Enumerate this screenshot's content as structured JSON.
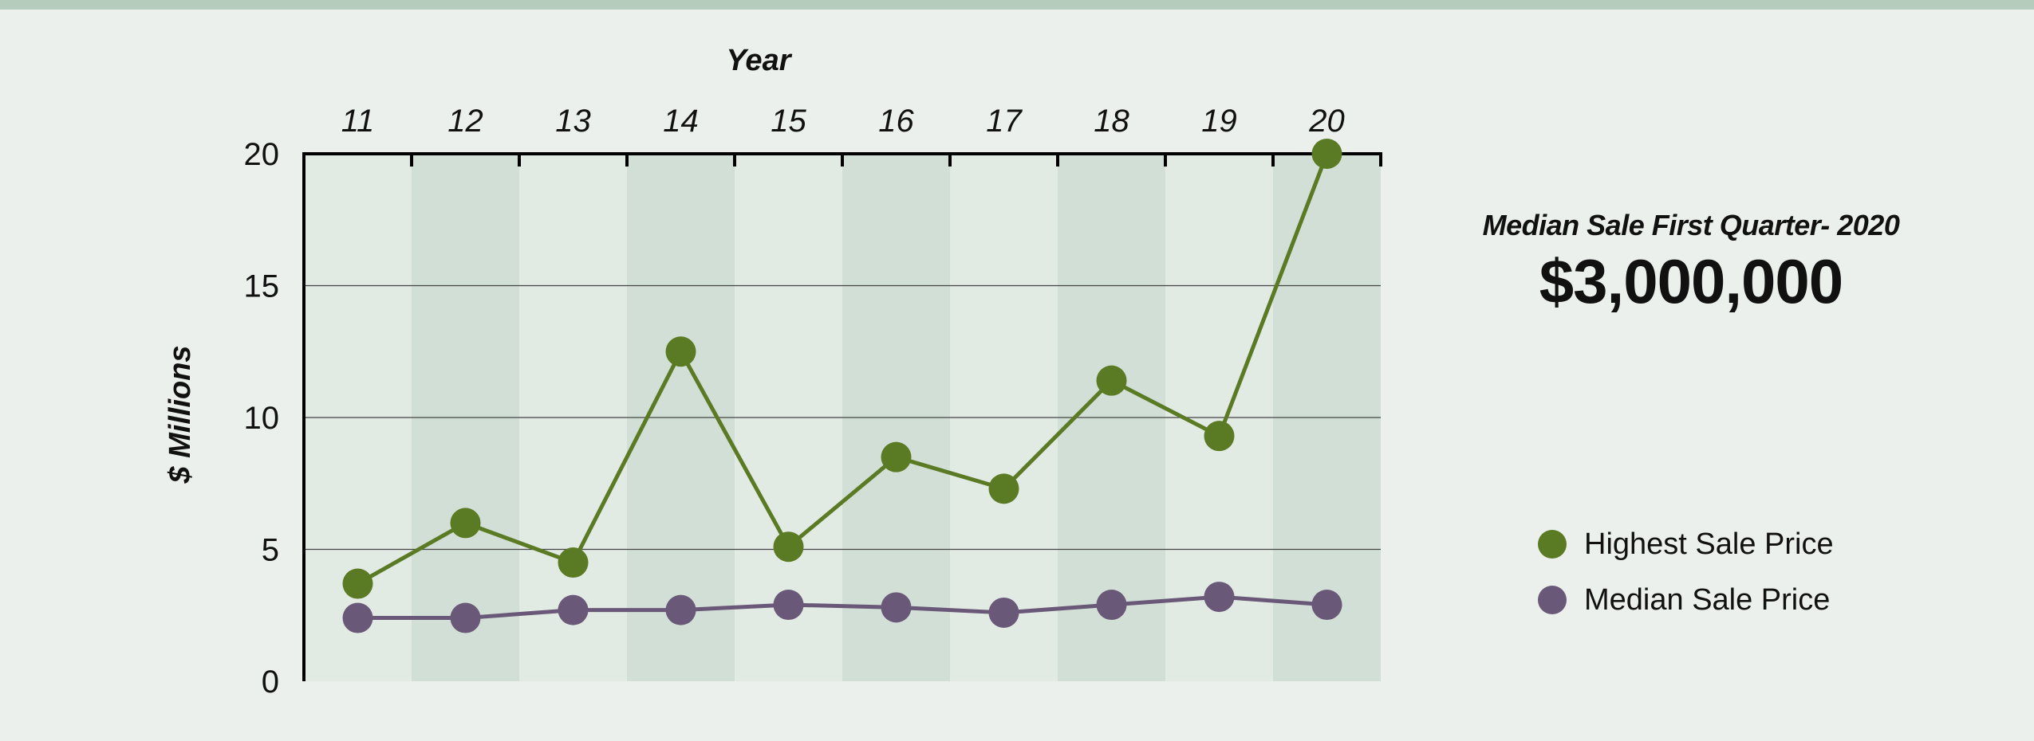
{
  "chart_data": {
    "type": "line",
    "xlabel": "Year",
    "ylabel": "$ Millions",
    "categories": [
      "11",
      "12",
      "13",
      "14",
      "15",
      "16",
      "17",
      "18",
      "19",
      "20"
    ],
    "ylim": [
      0,
      20
    ],
    "yticks": [
      "0",
      "5",
      "10",
      "15",
      "20"
    ],
    "grid": true,
    "legend_position": "right",
    "series": [
      {
        "name": "Highest Sale Price",
        "color": "#5a7a23",
        "values": [
          3.7,
          6.0,
          4.5,
          12.5,
          5.1,
          8.5,
          7.3,
          11.4,
          9.3,
          20.0
        ]
      },
      {
        "name": "Median Sale Price",
        "color": "#6a5878",
        "values": [
          2.4,
          2.4,
          2.7,
          2.7,
          2.9,
          2.8,
          2.6,
          2.9,
          3.2,
          2.9
        ]
      }
    ]
  },
  "callout": {
    "label": "Median Sale First Quarter- 2020",
    "value": "$3,000,000"
  },
  "colors": {
    "background": "#ebf0ec",
    "band_dark": "#d2dfd6",
    "band_light": "#e2eae4",
    "top_bar": "#b5ccbc"
  }
}
